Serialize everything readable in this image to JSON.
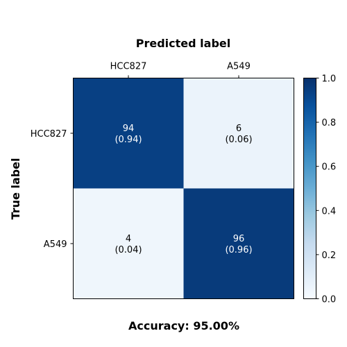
{
  "chart_data": {
    "type": "heatmap",
    "title": "Predicted label",
    "xlabel": "Predicted label",
    "ylabel": "True label",
    "footer": "Accuracy: 95.00%",
    "x_categories": [
      "HCC827",
      "A549"
    ],
    "y_categories": [
      "HCC827",
      "A549"
    ],
    "counts": [
      [
        94,
        6
      ],
      [
        4,
        96
      ]
    ],
    "cell_labels": [
      [
        "(0.94)",
        "(0.06)"
      ],
      [
        "(0.04)",
        "(0.96)"
      ]
    ],
    "values": [
      [
        0.94,
        0.06
      ],
      [
        0.04,
        0.96
      ]
    ],
    "colormap": "Blues",
    "colorbar": {
      "range": [
        0.0,
        1.0
      ],
      "ticks": [
        "0.0",
        "0.2",
        "0.4",
        "0.6",
        "0.8",
        "1.0"
      ]
    },
    "colors": {
      "low": "#f7fbff",
      "high": "#08306b"
    }
  }
}
